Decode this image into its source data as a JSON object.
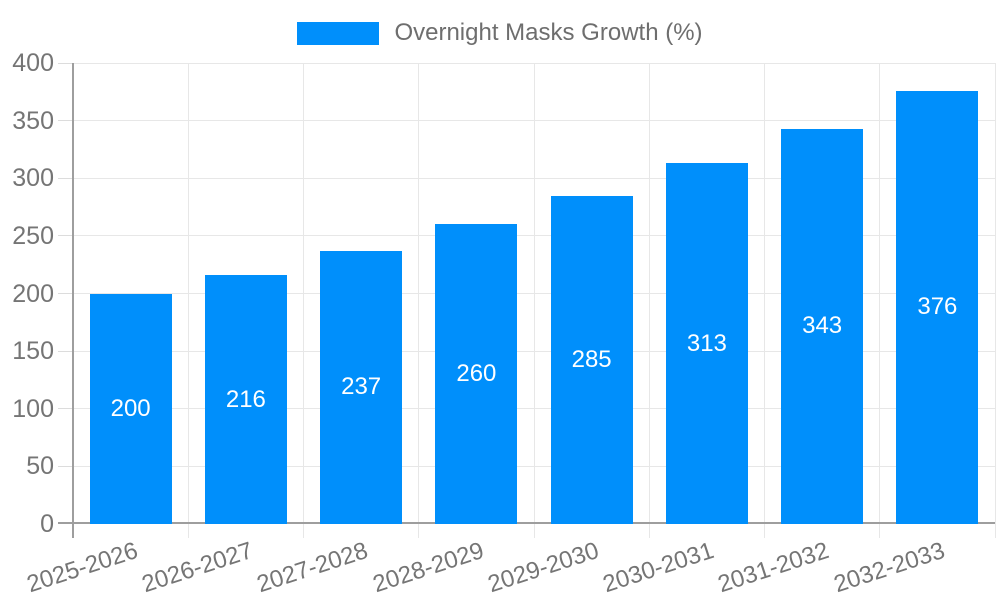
{
  "chart_data": {
    "type": "bar",
    "legend": "Overnight Masks Growth (%)",
    "legend_position": "top",
    "categories": [
      "2025-2026",
      "2026-2027",
      "2027-2028",
      "2028-2029",
      "2029-2030",
      "2030-2031",
      "2031-2032",
      "2032-2033"
    ],
    "values": [
      200,
      216,
      237,
      260,
      285,
      313,
      343,
      376
    ],
    "ylim": [
      0,
      400
    ],
    "ytick_step": 50,
    "yticks": [
      0,
      50,
      100,
      150,
      200,
      250,
      300,
      350,
      400
    ],
    "grid": true,
    "bar_labels_inside": true,
    "colors": {
      "bar": "#008ffb",
      "grid": "#e7e7e7",
      "tick_mark": "#dcdcdc",
      "axis_line": "#9e9e9e",
      "tick_text": "#757575",
      "legend_text": "#6e6e6e",
      "bar_label": "#ffffff"
    }
  }
}
